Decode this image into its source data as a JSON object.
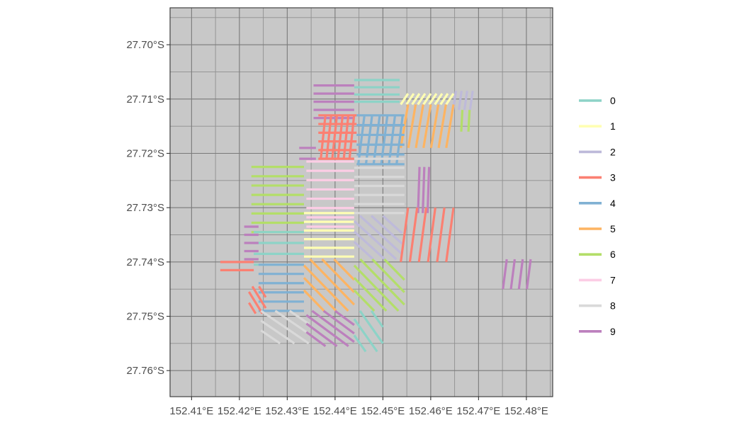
{
  "chart_data": {
    "type": "map",
    "grid": true,
    "legend_position": "right",
    "x_ticks": [
      {
        "value": 152.41,
        "label": "152.41°E"
      },
      {
        "value": 152.42,
        "label": "152.42°E"
      },
      {
        "value": 152.43,
        "label": "152.43°E"
      },
      {
        "value": 152.44,
        "label": "152.44°E"
      },
      {
        "value": 152.45,
        "label": "152.45°E"
      },
      {
        "value": 152.46,
        "label": "152.46°E"
      },
      {
        "value": 152.47,
        "label": "152.47°E"
      },
      {
        "value": 152.48,
        "label": "152.48°E"
      }
    ],
    "y_ticks": [
      {
        "value": -27.7,
        "label": "27.70°S"
      },
      {
        "value": -27.71,
        "label": "27.71°S"
      },
      {
        "value": -27.72,
        "label": "27.72°S"
      },
      {
        "value": -27.73,
        "label": "27.73°S"
      },
      {
        "value": -27.74,
        "label": "27.74°S"
      },
      {
        "value": -27.75,
        "label": "27.75°S"
      },
      {
        "value": -27.76,
        "label": "27.76°S"
      }
    ],
    "xlim": [
      152.4055,
      152.4855
    ],
    "ylim": [
      -27.7648,
      -27.6932
    ],
    "legend": [
      {
        "label": "0",
        "color": "#8DD3C7"
      },
      {
        "label": "1",
        "color": "#FFFFB3"
      },
      {
        "label": "2",
        "color": "#BEBADA"
      },
      {
        "label": "3",
        "color": "#FB8072"
      },
      {
        "label": "4",
        "color": "#80B1D3"
      },
      {
        "label": "5",
        "color": "#FDB462"
      },
      {
        "label": "6",
        "color": "#B3DE69"
      },
      {
        "label": "7",
        "color": "#FCCDE5"
      },
      {
        "label": "8",
        "color": "#D9D9D9"
      },
      {
        "label": "9",
        "color": "#BC80BD"
      }
    ],
    "blocks": [
      {
        "group": "9",
        "x0": 152.4355,
        "x1": 152.444,
        "y0": -27.7075,
        "y1": -27.7135,
        "dir": "h",
        "n": 5
      },
      {
        "group": "0",
        "x0": 152.444,
        "x1": 152.4535,
        "y0": -27.7065,
        "y1": -27.7105,
        "dir": "h",
        "n": 4
      },
      {
        "group": "1",
        "x0": 152.4545,
        "x1": 152.464,
        "y0": -27.709,
        "y1": -27.711,
        "dir": "v",
        "n": 9
      },
      {
        "group": "2",
        "x0": 152.465,
        "x1": 152.4685,
        "y0": -27.7085,
        "y1": -27.712,
        "dir": "v",
        "n": 4
      },
      {
        "group": "6",
        "x0": 152.4665,
        "x1": 152.468,
        "y0": -27.712,
        "y1": -27.716,
        "dir": "v",
        "n": 2
      },
      {
        "group": "5",
        "x0": 152.4545,
        "x1": 152.464,
        "y0": -27.711,
        "y1": -27.719,
        "dir": "v",
        "n": 7
      },
      {
        "group": "3",
        "x0": 152.4365,
        "x1": 152.4445,
        "y0": -27.713,
        "y1": -27.721,
        "dir": "h",
        "n": 6
      },
      {
        "group": "3",
        "x0": 152.4375,
        "x1": 152.4435,
        "y0": -27.713,
        "y1": -27.721,
        "dir": "v",
        "n": 6
      },
      {
        "group": "4",
        "x0": 152.4445,
        "x1": 152.4545,
        "y0": -27.713,
        "y1": -27.722,
        "dir": "h",
        "n": 6
      },
      {
        "group": "4",
        "x0": 152.4455,
        "x1": 152.4535,
        "y0": -27.713,
        "y1": -27.722,
        "dir": "v",
        "n": 6
      },
      {
        "group": "9",
        "x0": 152.4325,
        "x1": 152.436,
        "y0": -27.719,
        "y1": -27.721,
        "dir": "h",
        "n": 2
      },
      {
        "group": "9",
        "x0": 152.4575,
        "x1": 152.4595,
        "y0": -27.7225,
        "y1": -27.731,
        "dir": "v",
        "n": 3
      },
      {
        "group": "7",
        "x0": 152.434,
        "x1": 152.444,
        "y0": -27.7215,
        "y1": -27.7335,
        "dir": "h",
        "n": 8
      },
      {
        "group": "8",
        "x0": 152.444,
        "x1": 152.4545,
        "y0": -27.721,
        "y1": -27.731,
        "dir": "h",
        "n": 7
      },
      {
        "group": "6",
        "x0": 152.4225,
        "x1": 152.4335,
        "y0": -27.7225,
        "y1": -27.7345,
        "dir": "h",
        "n": 8
      },
      {
        "group": "0",
        "x0": 152.423,
        "x1": 152.4335,
        "y0": -27.7345,
        "y1": -27.7405,
        "dir": "h",
        "n": 4
      },
      {
        "group": "9",
        "x0": 152.421,
        "x1": 152.424,
        "y0": -27.7335,
        "y1": -27.7395,
        "dir": "h",
        "n": 5
      },
      {
        "group": "3",
        "x0": 152.416,
        "x1": 152.423,
        "y0": -27.74,
        "y1": -27.7415,
        "dir": "h",
        "n": 2
      },
      {
        "group": "1",
        "x0": 152.4335,
        "x1": 152.444,
        "y0": -27.731,
        "y1": -27.739,
        "dir": "h",
        "n": 6
      },
      {
        "group": "2",
        "x0": 152.444,
        "x1": 152.454,
        "y0": -27.7315,
        "y1": -27.7395,
        "dir": "d",
        "n": 6
      },
      {
        "group": "3",
        "x0": 152.4545,
        "x1": 152.464,
        "y0": -27.73,
        "y1": -27.74,
        "dir": "v",
        "n": 6
      },
      {
        "group": "4",
        "x0": 152.424,
        "x1": 152.4335,
        "y0": -27.7405,
        "y1": -27.749,
        "dir": "h",
        "n": 6
      },
      {
        "group": "5",
        "x0": 152.4335,
        "x1": 152.444,
        "y0": -27.7395,
        "y1": -27.749,
        "dir": "d",
        "n": 6
      },
      {
        "group": "6",
        "x0": 152.444,
        "x1": 152.4545,
        "y0": -27.7395,
        "y1": -27.749,
        "dir": "d",
        "n": 6
      },
      {
        "group": "3",
        "x0": 152.422,
        "x1": 152.4255,
        "y0": -27.7445,
        "y1": -27.7495,
        "dir": "d",
        "n": 4
      },
      {
        "group": "8",
        "x0": 152.4245,
        "x1": 152.4345,
        "y0": -27.749,
        "y1": -27.755,
        "dir": "d",
        "n": 5
      },
      {
        "group": "9",
        "x0": 152.434,
        "x1": 152.444,
        "y0": -27.749,
        "y1": -27.7555,
        "dir": "d",
        "n": 6
      },
      {
        "group": "0",
        "x0": 152.444,
        "x1": 152.45,
        "y0": -27.749,
        "y1": -27.7565,
        "dir": "d",
        "n": 4
      },
      {
        "group": "9",
        "x0": 152.4755,
        "x1": 152.4805,
        "y0": -27.7395,
        "y1": -27.745,
        "dir": "v",
        "n": 4
      }
    ]
  }
}
